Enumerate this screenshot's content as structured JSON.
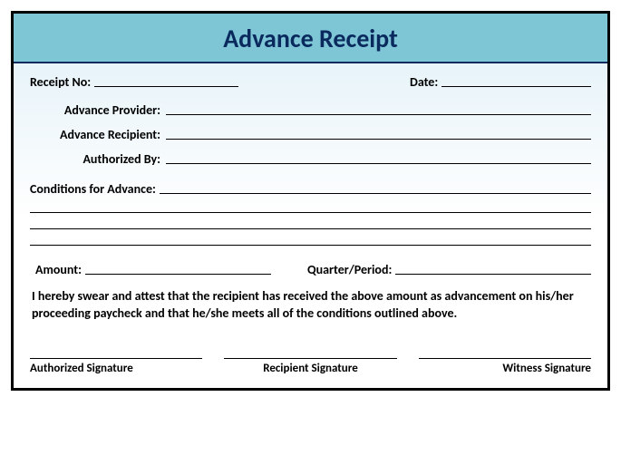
{
  "title": "Advance Receipt",
  "colors": {
    "header_bg": "#7ec5d6",
    "title_color": "#0a2a5e",
    "border_color": "#000000",
    "gradient_top": "#e0f0f7",
    "gradient_bottom": "#ffffff"
  },
  "fields": {
    "receipt_no_label": "Receipt No:",
    "date_label": "Date:",
    "provider_label": "Advance Provider:",
    "recipient_label": "Advance Recipient:",
    "authorized_label": "Authorized By:",
    "conditions_label": "Conditions for Advance:",
    "amount_label": "Amount:",
    "quarter_label": "Quarter/Period:"
  },
  "attestation": "I hereby swear and attest that the recipient has received the above amount as advancement on his/her proceeding paycheck and that he/she meets all of the conditions outlined above.",
  "signatures": {
    "authorized": "Authorized Signature",
    "recipient": "Recipient Signature",
    "witness": "Witness Signature"
  }
}
